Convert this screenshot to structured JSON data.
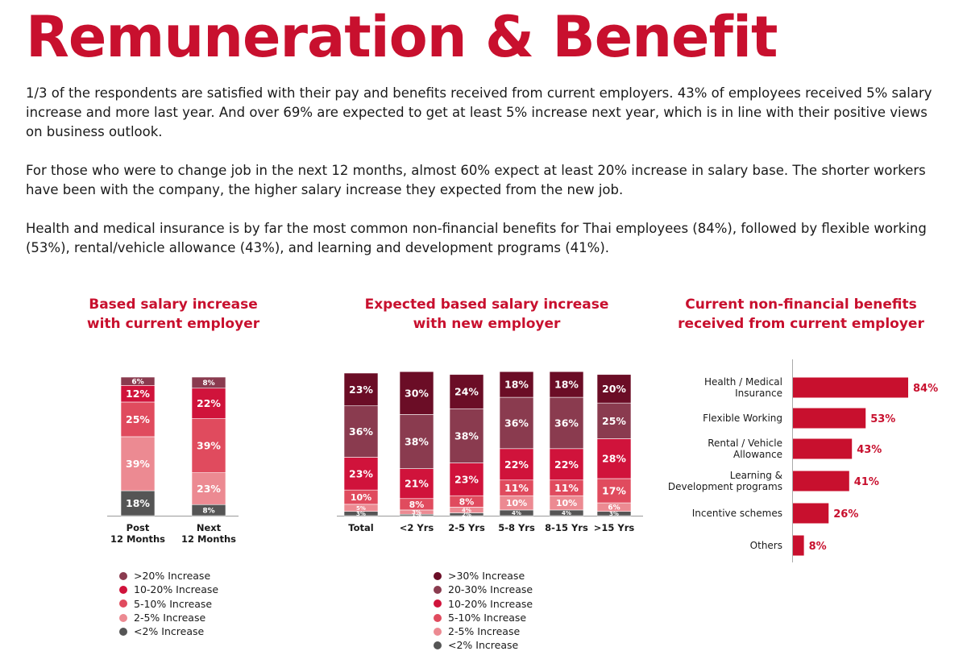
{
  "title": "Remuneration & Benefit",
  "paragraphs": [
    "1/3 of the respondents are satisfied with their pay and benefits received from current employers. 43% of employees received 5% salary increase and more last year. And over 69% are expected to get at least 5% increase next year, which is in line with their positive views on business outlook.",
    "For those who were to change job in the next 12 months, almost 60% expect at least 20% increase in salary base. The shorter workers have been with the company, the higher salary increase they expected from the new job.",
    "Health and medical insurance is by far the most common non-financial benefits for Thai employees (84%), followed by flexible working (53%), rental/vehicle allowance (43%), and learning and development programs (41%)."
  ],
  "colors": {
    "accent": "#c8102e",
    ">30% Increase": "#6b0d26",
    ">20% Increase": "#8a3b4f",
    "20-30% Increase": "#8a3b4f",
    "10-20% Increase": "#d0133b",
    "5-10% Increase": "#e04b5e",
    "2-5% Increase": "#ec8a92",
    "<2% Increase": "#555555"
  },
  "chart_data": [
    {
      "type": "bar",
      "stacked": true,
      "title": [
        "Based salary increase",
        "with current employer"
      ],
      "categories": [
        "Post\n12 Months",
        "Next\n12 Months"
      ],
      "series": [
        {
          "name": "<2% Increase",
          "values": [
            18,
            8
          ]
        },
        {
          "name": "2-5% Increase",
          "values": [
            39,
            23
          ]
        },
        {
          "name": "5-10% Increase",
          "values": [
            25,
            39
          ]
        },
        {
          "name": "10-20% Increase",
          "values": [
            12,
            22
          ]
        },
        {
          "name": ">20% Increase",
          "values": [
            6,
            8
          ]
        }
      ],
      "legend": [
        ">20% Increase",
        "10-20% Increase",
        "5-10% Increase",
        "2-5% Increase",
        "<2% Increase"
      ],
      "legend_position": "bottom"
    },
    {
      "type": "bar",
      "stacked": true,
      "title": [
        "Expected based salary increase",
        "with new employer"
      ],
      "categories": [
        "Total",
        "<2 Yrs",
        "2-5 Yrs",
        "5-8 Yrs",
        "8-15 Yrs",
        ">15 Yrs"
      ],
      "series": [
        {
          "name": "<2% Increase",
          "values": [
            3,
            1,
            2,
            4,
            4,
            3
          ]
        },
        {
          "name": "2-5% Increase",
          "values": [
            5,
            3,
            4,
            10,
            10,
            6
          ]
        },
        {
          "name": "5-10% Increase",
          "values": [
            10,
            8,
            8,
            11,
            11,
            17
          ]
        },
        {
          "name": "10-20% Increase",
          "values": [
            23,
            21,
            23,
            22,
            22,
            28
          ]
        },
        {
          "name": "20-30% Increase",
          "values": [
            36,
            38,
            38,
            36,
            36,
            25
          ]
        },
        {
          "name": ">30% Increase",
          "values": [
            23,
            30,
            24,
            18,
            18,
            20
          ]
        }
      ],
      "legend": [
        ">30% Increase",
        "20-30% Increase",
        "10-20% Increase",
        "5-10% Increase",
        "2-5% Increase",
        "<2% Increase"
      ],
      "legend_position": "bottom"
    },
    {
      "type": "bar",
      "orientation": "horizontal",
      "title": [
        "Current non-financial benefits",
        "received from current employer"
      ],
      "categories": [
        "Health / Medical\nInsurance",
        "Flexible Working",
        "Rental / Vehicle\nAllowance",
        "Learning &\nDevelopment programs",
        "Incentive schemes",
        "Others"
      ],
      "values": [
        84,
        53,
        43,
        41,
        26,
        8
      ],
      "labels": [
        "84%",
        "53%",
        "43%",
        "41%",
        "26%",
        "8%"
      ]
    }
  ]
}
